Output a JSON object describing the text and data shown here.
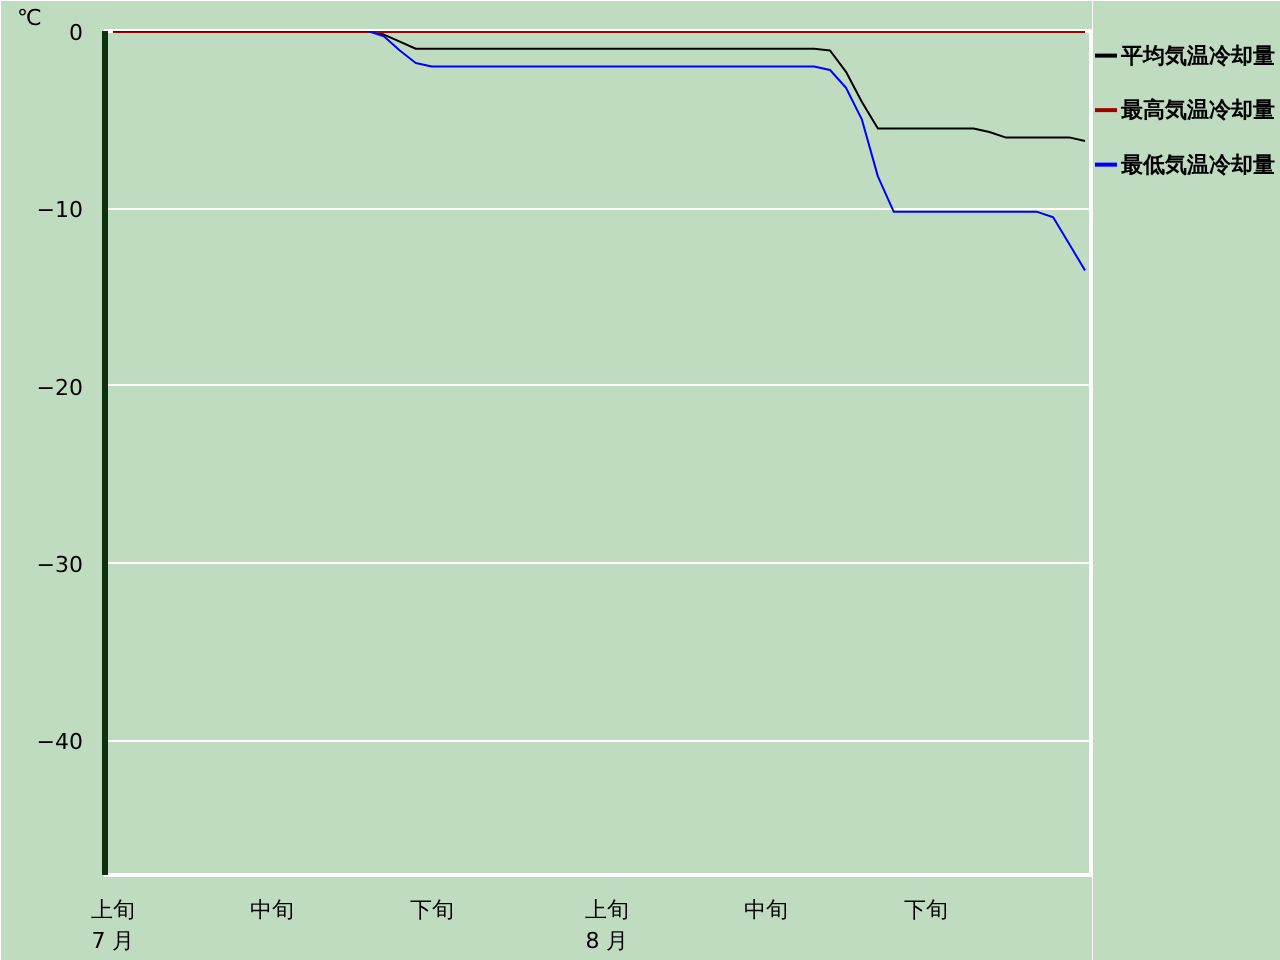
{
  "chart_data": {
    "type": "line",
    "ylabel": "℃",
    "categories": [
      "上旬\n7 月",
      null,
      null,
      null,
      null,
      null,
      null,
      null,
      null,
      null,
      "中旬",
      null,
      null,
      null,
      null,
      null,
      null,
      null,
      null,
      null,
      "下旬",
      null,
      null,
      null,
      null,
      null,
      null,
      null,
      null,
      null,
      null,
      "上旬\n8 月",
      null,
      null,
      null,
      null,
      null,
      null,
      null,
      null,
      null,
      "中旬",
      null,
      null,
      null,
      null,
      null,
      null,
      null,
      null,
      null,
      "下旬",
      null,
      null,
      null,
      null,
      null,
      null,
      null,
      null,
      null,
      null
    ],
    "ylim": [
      -47.6,
      0
    ],
    "yticks": [
      0,
      -10,
      -20,
      -30,
      -40
    ],
    "grid": "y",
    "legend": "right",
    "line_style": "solid",
    "marker": "none",
    "series": [
      {
        "name": "平均気温冷却量",
        "color": "#000000",
        "values": [
          0,
          0,
          0,
          0,
          0,
          0,
          0,
          0,
          0,
          0,
          0,
          0,
          0,
          0,
          0,
          0,
          0,
          -0.2,
          -0.6,
          -1,
          -1,
          -1,
          -1,
          -1,
          -1,
          -1,
          -1,
          -1,
          -1,
          -1,
          -1,
          -1,
          -1,
          -1,
          -1,
          -1,
          -1,
          -1,
          -1,
          -1,
          -1,
          -1,
          -1,
          -1,
          -1,
          -1.1,
          -2.3,
          -4,
          -5.5,
          -5.5,
          -5.5,
          -5.5,
          -5.5,
          -5.5,
          -5.5,
          -5.7,
          -6,
          -6,
          -6,
          -6,
          -6,
          -6.2
        ]
      },
      {
        "name": "最高気温冷却量",
        "color": "#a00000",
        "values": [
          0,
          0,
          0,
          0,
          0,
          0,
          0,
          0,
          0,
          0,
          0,
          0,
          0,
          0,
          0,
          0,
          0,
          0,
          0,
          0,
          0,
          0,
          0,
          0,
          0,
          0,
          0,
          0,
          0,
          0,
          0,
          0,
          0,
          0,
          0,
          0,
          0,
          0,
          0,
          0,
          0,
          0,
          0,
          0,
          0,
          0,
          0,
          0,
          0,
          0,
          0,
          0,
          0,
          0,
          0,
          0,
          0,
          0,
          0,
          0,
          0,
          0
        ]
      },
      {
        "name": "最低気温冷却量",
        "color": "#0000ff",
        "values": [
          0,
          0,
          0,
          0,
          0,
          0,
          0,
          0,
          0,
          0,
          0,
          0,
          0,
          0,
          0,
          0,
          0,
          -0.3,
          -1.1,
          -1.8,
          -2,
          -2,
          -2,
          -2,
          -2,
          -2,
          -2,
          -2,
          -2,
          -2,
          -2,
          -2,
          -2,
          -2,
          -2,
          -2,
          -2,
          -2,
          -2,
          -2,
          -2,
          -2,
          -2,
          -2,
          -2,
          -2.2,
          -3.2,
          -5,
          -8.2,
          -10.2,
          -10.2,
          -10.2,
          -10.2,
          -10.2,
          -10.2,
          -10.2,
          -10.2,
          -10.2,
          -10.2,
          -10.5,
          -12,
          -13.5
        ]
      }
    ]
  }
}
